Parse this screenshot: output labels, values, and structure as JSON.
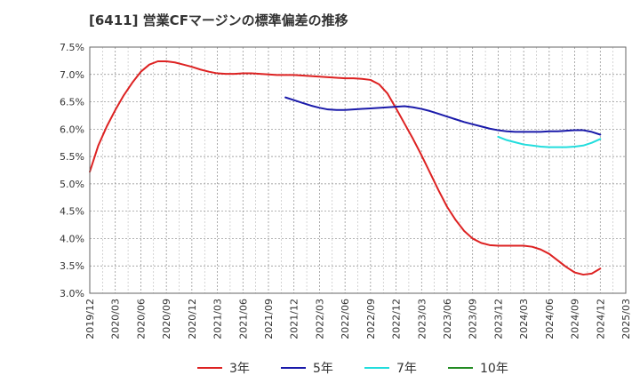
{
  "chart_data": {
    "type": "line",
    "title": "[6411]  営業CFマージンの標準偏差の推移",
    "x_ticks": [
      "2019/12",
      "2020/03",
      "2020/06",
      "2020/09",
      "2020/12",
      "2021/03",
      "2021/06",
      "2021/09",
      "2021/12",
      "2022/03",
      "2022/06",
      "2022/09",
      "2022/12",
      "2023/03",
      "2023/06",
      "2023/09",
      "2023/12",
      "2024/03",
      "2024/06",
      "2024/09",
      "2024/12",
      "2025/03"
    ],
    "y_ticks": [
      "3.0%",
      "3.5%",
      "4.0%",
      "4.5%",
      "5.0%",
      "5.5%",
      "6.0%",
      "6.5%",
      "7.0%",
      "7.5%"
    ],
    "ylim": [
      3.0,
      7.5
    ],
    "grid": true,
    "legend_position": "bottom",
    "series": [
      {
        "name": "3年",
        "color": "#dd2222",
        "x": [
          "2019/12",
          "2020/01",
          "2020/02",
          "2020/03",
          "2020/04",
          "2020/05",
          "2020/06",
          "2020/07",
          "2020/08",
          "2020/09",
          "2020/10",
          "2020/11",
          "2020/12",
          "2021/01",
          "2021/02",
          "2021/03",
          "2021/04",
          "2021/05",
          "2021/06",
          "2021/07",
          "2021/08",
          "2021/09",
          "2021/10",
          "2021/11",
          "2021/12",
          "2022/01",
          "2022/02",
          "2022/03",
          "2022/04",
          "2022/05",
          "2022/06",
          "2022/07",
          "2022/08",
          "2022/09",
          "2022/10",
          "2022/11",
          "2022/12",
          "2023/01",
          "2023/02",
          "2023/03",
          "2023/04",
          "2023/05",
          "2023/06",
          "2023/07",
          "2023/08",
          "2023/09",
          "2023/10",
          "2023/11",
          "2023/12",
          "2024/01",
          "2024/02",
          "2024/03",
          "2024/04",
          "2024/05",
          "2024/06",
          "2024/07",
          "2024/08",
          "2024/09",
          "2024/10",
          "2024/11",
          "2024/12"
        ],
        "values": [
          5.22,
          5.7,
          6.05,
          6.35,
          6.62,
          6.85,
          7.05,
          7.18,
          7.24,
          7.24,
          7.22,
          7.18,
          7.14,
          7.09,
          7.05,
          7.02,
          7.01,
          7.01,
          7.02,
          7.02,
          7.01,
          7.0,
          6.99,
          6.99,
          6.99,
          6.98,
          6.97,
          6.96,
          6.95,
          6.94,
          6.93,
          6.93,
          6.92,
          6.9,
          6.82,
          6.65,
          6.38,
          6.1,
          5.82,
          5.52,
          5.2,
          4.88,
          4.58,
          4.34,
          4.14,
          4.0,
          3.92,
          3.88,
          3.87,
          3.87,
          3.87,
          3.87,
          3.85,
          3.8,
          3.72,
          3.6,
          3.48,
          3.38,
          3.34,
          3.36,
          3.45
        ]
      },
      {
        "name": "5年",
        "color": "#1a1aaa",
        "x": [
          "2021/11",
          "2021/12",
          "2022/01",
          "2022/02",
          "2022/03",
          "2022/04",
          "2022/05",
          "2022/06",
          "2022/07",
          "2022/08",
          "2022/09",
          "2022/10",
          "2022/11",
          "2022/12",
          "2023/01",
          "2023/02",
          "2023/03",
          "2023/04",
          "2023/05",
          "2023/06",
          "2023/07",
          "2023/08",
          "2023/09",
          "2023/10",
          "2023/11",
          "2023/12",
          "2024/01",
          "2024/02",
          "2024/03",
          "2024/04",
          "2024/05",
          "2024/06",
          "2024/07",
          "2024/08",
          "2024/09",
          "2024/10",
          "2024/11",
          "2024/12"
        ],
        "values": [
          6.58,
          6.53,
          6.48,
          6.43,
          6.39,
          6.36,
          6.35,
          6.35,
          6.36,
          6.37,
          6.38,
          6.39,
          6.4,
          6.41,
          6.42,
          6.4,
          6.37,
          6.33,
          6.28,
          6.23,
          6.18,
          6.13,
          6.09,
          6.05,
          6.01,
          5.98,
          5.96,
          5.95,
          5.95,
          5.95,
          5.95,
          5.96,
          5.96,
          5.97,
          5.98,
          5.98,
          5.95,
          5.9
        ]
      },
      {
        "name": "7年",
        "color": "#22dddd",
        "x": [
          "2023/12",
          "2024/01",
          "2024/02",
          "2024/03",
          "2024/04",
          "2024/05",
          "2024/06",
          "2024/07",
          "2024/08",
          "2024/09",
          "2024/10",
          "2024/11",
          "2024/12"
        ],
        "values": [
          5.86,
          5.8,
          5.76,
          5.72,
          5.7,
          5.68,
          5.67,
          5.67,
          5.67,
          5.68,
          5.7,
          5.75,
          5.82
        ]
      },
      {
        "name": "10年",
        "color": "#228b22",
        "x": [],
        "values": []
      }
    ]
  }
}
